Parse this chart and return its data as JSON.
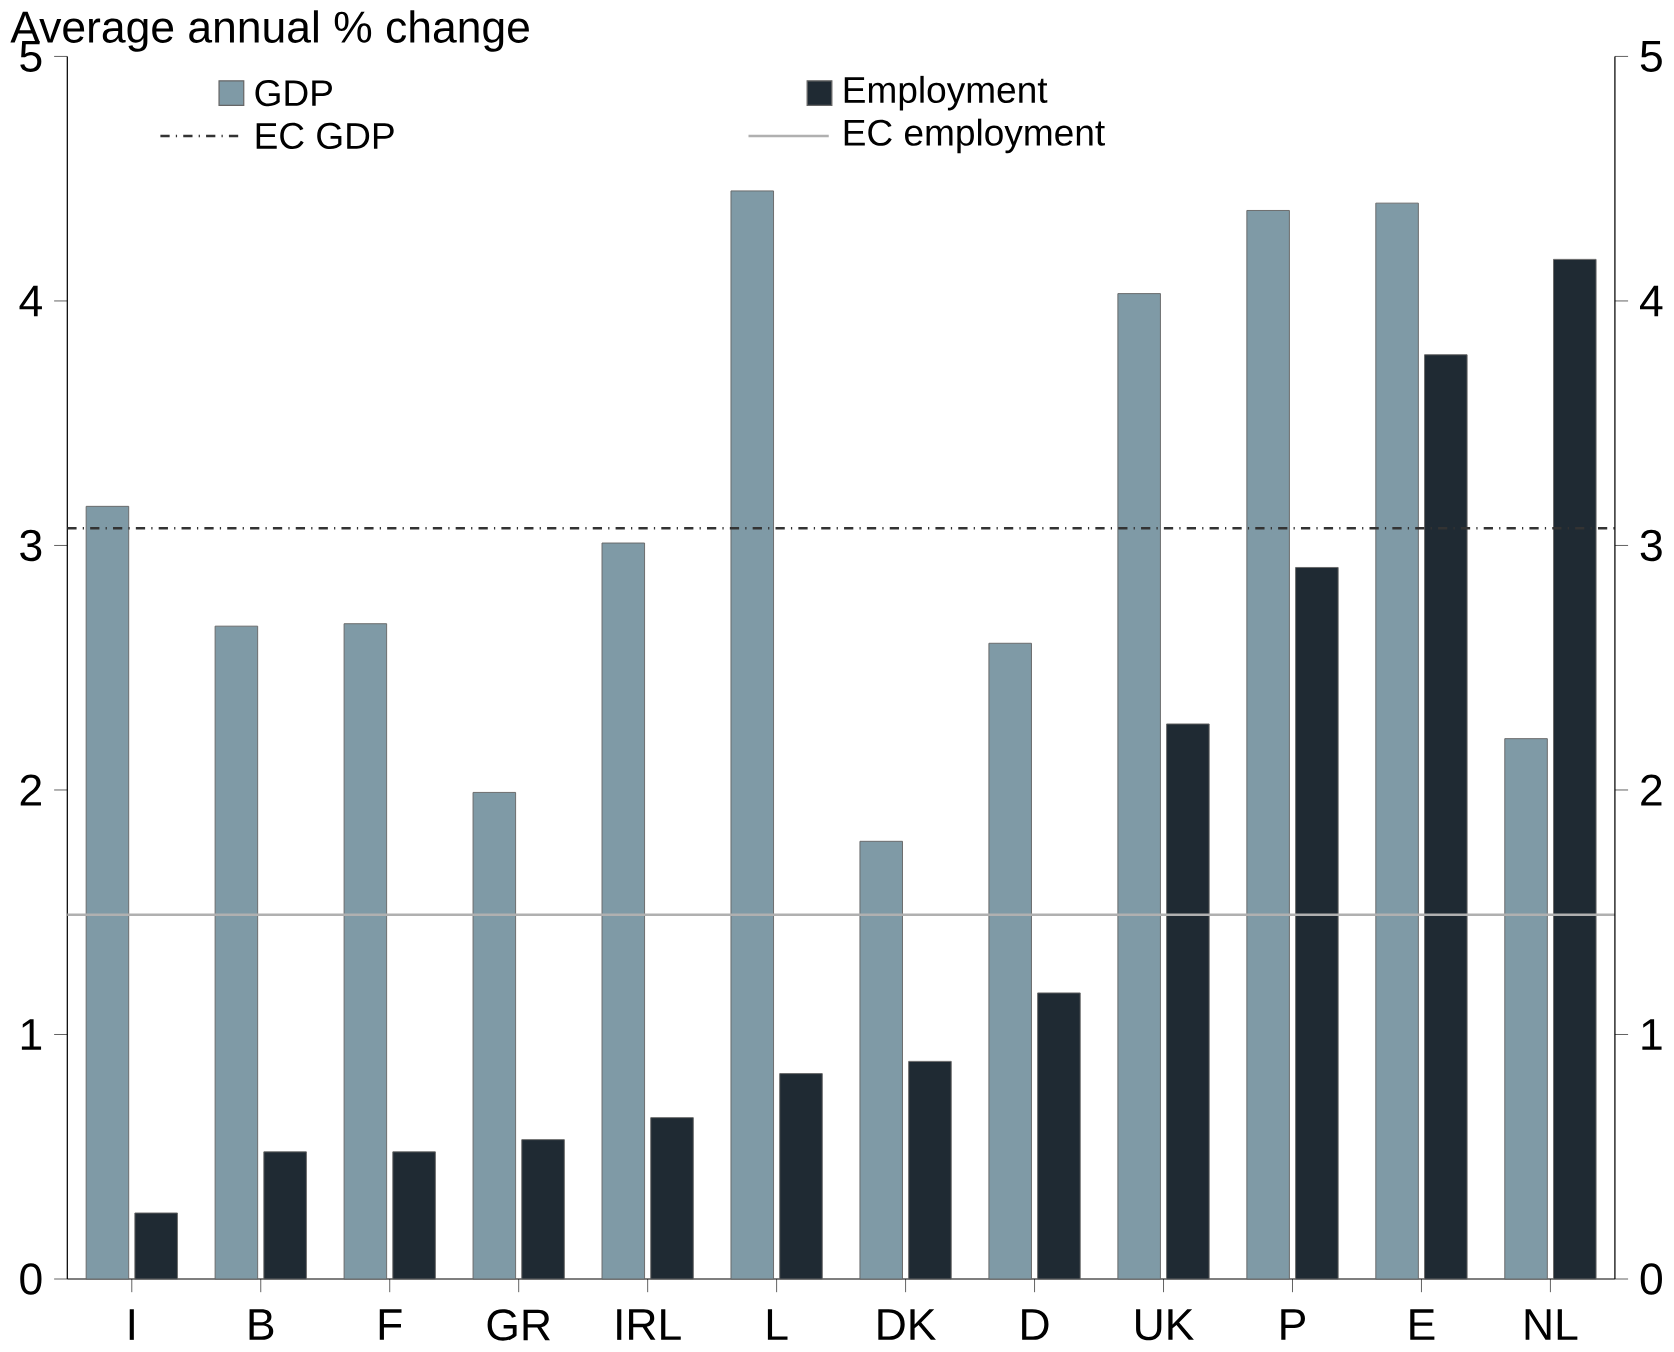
{
  "chart_data": {
    "type": "bar",
    "ylabel": "Average annual % change",
    "categories": [
      "I",
      "B",
      "F",
      "GR",
      "IRL",
      "L",
      "DK",
      "D",
      "UK",
      "P",
      "E",
      "NL"
    ],
    "series": [
      {
        "name": "GDP",
        "color": "#7f9aa6",
        "values": [
          3.16,
          2.67,
          2.68,
          1.99,
          3.01,
          4.45,
          1.79,
          2.6,
          4.03,
          4.37,
          4.4,
          2.21
        ]
      },
      {
        "name": "Employment",
        "color": "#1f2a33",
        "values": [
          0.27,
          0.52,
          0.52,
          0.57,
          0.66,
          0.84,
          0.89,
          1.17,
          2.27,
          2.91,
          3.78,
          4.17
        ]
      }
    ],
    "ref_lines": [
      {
        "axis": "y",
        "value": 3.07,
        "label": "EC GDP",
        "color": "#333333",
        "line_style": "dashdot"
      },
      {
        "axis": "y",
        "value": 1.49,
        "label": "EC employment",
        "color": "#b0b0b0",
        "line_style": "solid"
      }
    ],
    "ylim": [
      0,
      5
    ],
    "yticks": [
      0,
      1,
      2,
      3,
      4,
      5
    ],
    "y2lim": [
      0,
      5
    ],
    "y2ticks": [
      0,
      1,
      2,
      3,
      4,
      5
    ],
    "legend": "top",
    "grid": false
  }
}
